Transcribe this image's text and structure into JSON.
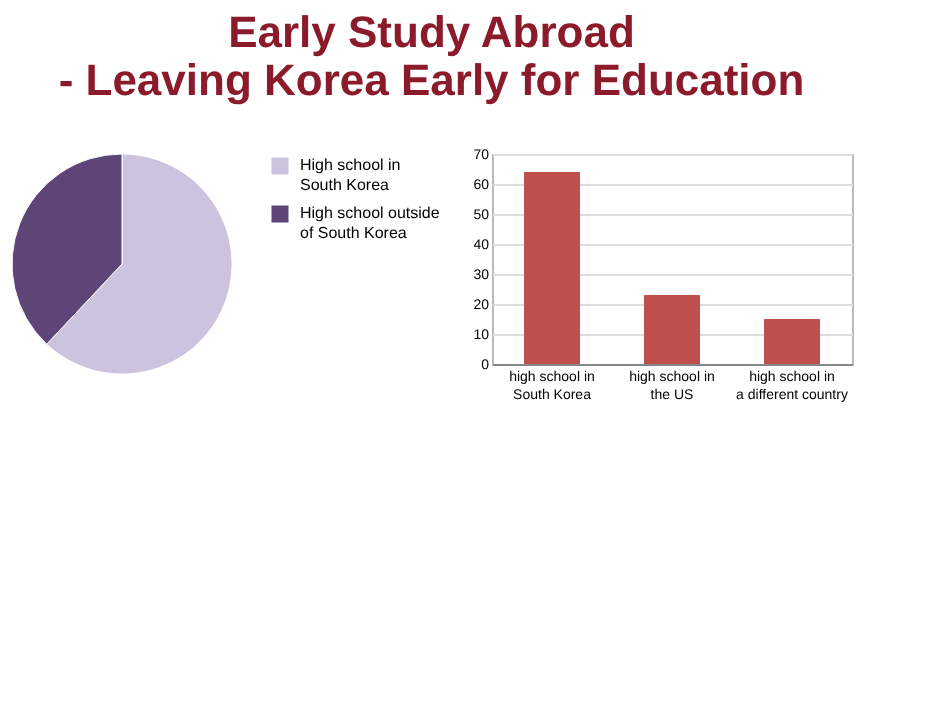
{
  "chart_data": [
    {
      "type": "pie",
      "title": "Early Study Abroad\n- Leaving Korea Early for Education",
      "categories": [
        "High school in South Korea",
        "High school outside of South Korea"
      ],
      "values": [
        62,
        38
      ],
      "colors": [
        "#ccc3de",
        "#5d4677"
      ],
      "legend": "right"
    },
    {
      "type": "bar",
      "categories": [
        "high school in South Korea",
        "high school in the US",
        "high school in a different country"
      ],
      "values": [
        64,
        23,
        15
      ],
      "color": "#c0504d",
      "ylim": [
        0,
        70
      ],
      "yticks": [
        0,
        10,
        20,
        30,
        40,
        50,
        60,
        70
      ],
      "grid": "y"
    }
  ]
}
